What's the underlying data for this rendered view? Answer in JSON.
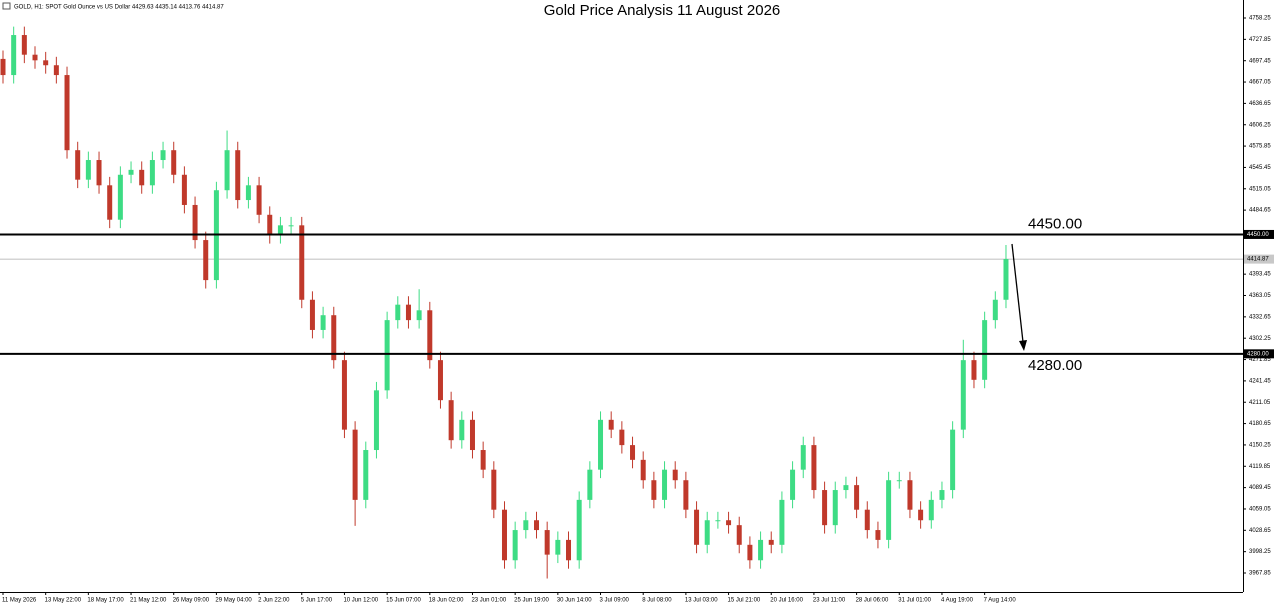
{
  "chart_data": {
    "type": "candlestick",
    "title": "Gold Price Analysis 11 August 2026",
    "header": "GOLD, H1:  SPOT Gold Ounce vs US Dollar  4429.63 4435.14 4413.76 4414.87",
    "categories": [
      "11 May 2026",
      null,
      null,
      null,
      "13 May 22:00",
      null,
      null,
      null,
      "18 May 17:00",
      null,
      null,
      null,
      "21 May 12:00",
      null,
      null,
      null,
      "26 May 09:00",
      null,
      null,
      null,
      "29 May 04:00",
      null,
      null,
      null,
      "2 Jun 22:00",
      null,
      null,
      null,
      "5 Jun 17:00",
      null,
      null,
      null,
      "10 Jun 12:00",
      null,
      null,
      null,
      "15 Jun 07:00",
      null,
      null,
      null,
      "18 Jun 02:00",
      null,
      null,
      null,
      "23 Jun 01:00",
      null,
      null,
      null,
      "25 Jun 19:00",
      null,
      null,
      null,
      "30 Jun 14:00",
      null,
      null,
      null,
      "3 Jul 09:00",
      null,
      null,
      null,
      "8 Jul 08:00",
      null,
      null,
      null,
      "13 Jul 03:00",
      null,
      null,
      null,
      "15 Jul 21:00",
      null,
      null,
      null,
      "20 Jul 16:00",
      null,
      null,
      null,
      "23 Jul 11:00",
      null,
      null,
      null,
      "28 Jul 06:00",
      null,
      null,
      null,
      "31 Jul 01:00",
      null,
      null,
      null,
      "4 Aug 19:00",
      null,
      null,
      null,
      "7 Aug 14:00",
      null,
      null
    ],
    "open": [
      4700,
      4677,
      4734,
      4706,
      4698,
      4691,
      4677,
      4570,
      4528,
      4556,
      4520,
      4471,
      4535,
      4542,
      4520,
      4556,
      4570,
      4535,
      4492,
      4442,
      4385,
      4513,
      4570,
      4499,
      4520,
      4478,
      4449,
      4463,
      4463,
      4357,
      4314,
      4335,
      4271,
      4172,
      4072,
      4143,
      4228,
      4328,
      4350,
      4328,
      4342,
      4271,
      4214,
      4157,
      4186,
      4143,
      4115,
      4058,
      3986,
      4029,
      4043,
      4029,
      3994,
      4015,
      3986,
      4072,
      4115,
      4186,
      4172,
      4150,
      4129,
      4100,
      4072,
      4115,
      4100,
      4058,
      4008,
      4043,
      4043,
      4036,
      4008,
      3986,
      4015,
      4008,
      4072,
      4115,
      4150,
      4086,
      4036,
      4086,
      4093,
      4058,
      4029,
      4015,
      4100,
      4100,
      4058,
      4043,
      4072,
      4086,
      4172,
      4271,
      4243,
      4328,
      4357
    ],
    "high": [
      4712,
      4746,
      4746,
      4718,
      4710,
      4703,
      4689,
      4582,
      4568,
      4568,
      4532,
      4547,
      4554,
      4554,
      4568,
      4582,
      4582,
      4547,
      4504,
      4454,
      4525,
      4598,
      4582,
      4532,
      4532,
      4490,
      4475,
      4475,
      4475,
      4369,
      4347,
      4347,
      4283,
      4184,
      4155,
      4240,
      4340,
      4362,
      4362,
      4372,
      4354,
      4283,
      4226,
      4198,
      4198,
      4155,
      4127,
      4070,
      4041,
      4055,
      4055,
      4041,
      4027,
      4027,
      4084,
      4127,
      4198,
      4198,
      4184,
      4162,
      4141,
      4112,
      4127,
      4127,
      4112,
      4070,
      4055,
      4055,
      4055,
      4048,
      4020,
      4027,
      4027,
      4084,
      4127,
      4162,
      4162,
      4098,
      4098,
      4105,
      4105,
      4070,
      4041,
      4112,
      4112,
      4112,
      4070,
      4084,
      4098,
      4184,
      4300,
      4283,
      4340,
      4369,
      4435
    ],
    "low": [
      4665,
      4665,
      4694,
      4686,
      4679,
      4665,
      4558,
      4516,
      4516,
      4508,
      4459,
      4459,
      4523,
      4508,
      4508,
      4544,
      4523,
      4480,
      4430,
      4373,
      4373,
      4501,
      4487,
      4487,
      4466,
      4437,
      4437,
      4451,
      4345,
      4302,
      4302,
      4259,
      4160,
      4035,
      4060,
      4131,
      4216,
      4316,
      4316,
      4316,
      4259,
      4202,
      4145,
      4145,
      4131,
      4103,
      4046,
      3974,
      3974,
      4017,
      4017,
      3960,
      3982,
      3974,
      3974,
      4060,
      4103,
      4160,
      4138,
      4117,
      4088,
      4060,
      4060,
      4088,
      4046,
      3996,
      3996,
      4031,
      4024,
      3996,
      3974,
      3974,
      3996,
      3996,
      4060,
      4103,
      4074,
      4024,
      4024,
      4074,
      4046,
      4017,
      4003,
      4003,
      4088,
      4046,
      4031,
      4031,
      4060,
      4074,
      4160,
      4231,
      4231,
      4316,
      4345
    ],
    "close": [
      4677,
      4734,
      4706,
      4698,
      4691,
      4677,
      4570,
      4528,
      4556,
      4520,
      4471,
      4535,
      4542,
      4520,
      4556,
      4570,
      4535,
      4492,
      4442,
      4385,
      4513,
      4570,
      4499,
      4520,
      4478,
      4449,
      4463,
      4463,
      4357,
      4314,
      4335,
      4271,
      4172,
      4072,
      4143,
      4228,
      4328,
      4350,
      4328,
      4342,
      4271,
      4214,
      4157,
      4186,
      4143,
      4115,
      4058,
      3986,
      4029,
      4043,
      4029,
      3994,
      4015,
      3986,
      4072,
      4115,
      4186,
      4172,
      4150,
      4129,
      4100,
      4072,
      4115,
      4100,
      4058,
      4008,
      4043,
      4043,
      4036,
      4008,
      3986,
      4015,
      4008,
      4072,
      4115,
      4150,
      4086,
      4036,
      4086,
      4093,
      4058,
      4029,
      4015,
      4100,
      4100,
      4058,
      4043,
      4072,
      4086,
      4172,
      4271,
      4243,
      4328,
      4357,
      4415
    ],
    "up_color": "#3ddc84",
    "down_color": "#c0392b",
    "ylim": [
      3940.8,
      4783.9
    ],
    "yticks": [
      4758.25,
      4727.85,
      4697.45,
      4667.05,
      4636.65,
      4606.25,
      4575.85,
      4545.45,
      4515.05,
      4484.65,
      4393.45,
      4363.05,
      4332.65,
      4302.25,
      4271.85,
      4241.45,
      4211.05,
      4180.65,
      4150.25,
      4119.85,
      4089.45,
      4059.05,
      4028.65,
      3998.25,
      3967.85
    ],
    "levels": [
      {
        "value": 4450,
        "label": "4450.00"
      },
      {
        "value": 4280,
        "label": "4280.00"
      }
    ],
    "current_price": {
      "value": 4414.87,
      "label": "4414.87"
    }
  }
}
